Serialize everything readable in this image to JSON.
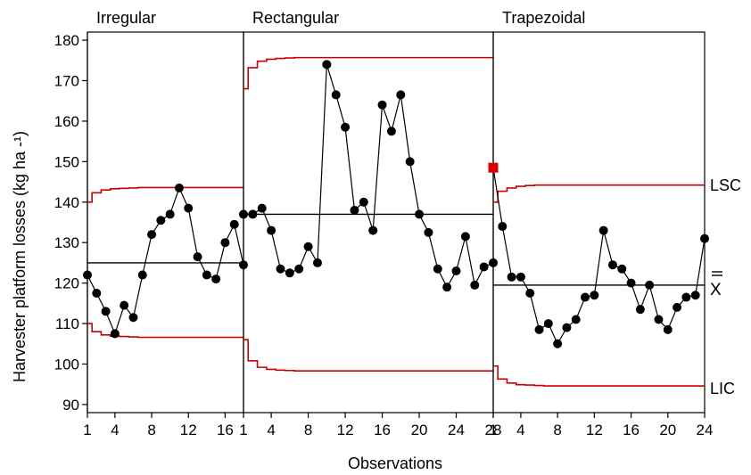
{
  "chart_data": {
    "type": "line",
    "ylabel": "Harvester platform losses (kg ha -¹)",
    "xlabel": "Observations",
    "ylim": [
      88,
      182
    ],
    "y_ticks": [
      90,
      100,
      110,
      120,
      130,
      140,
      150,
      160,
      170,
      180
    ],
    "limit_labels": {
      "upper": "LSC",
      "mean": "X"
    },
    "lower_limit_label": "LIC",
    "panels": [
      {
        "title": "Irregular",
        "n": 18,
        "x_ticks": [
          "1",
          "4",
          "8",
          "12",
          "16"
        ],
        "x_tick_values": [
          1,
          4,
          8,
          12,
          16
        ],
        "mean": 125,
        "values": [
          122,
          117.5,
          113,
          107.5,
          114.5,
          111.5,
          122,
          132,
          135.5,
          137,
          143.5,
          138.5,
          126.5,
          122,
          121,
          130,
          134.5,
          124.5
        ],
        "ucl": [
          140,
          142.3,
          143,
          143.3,
          143.4,
          143.5,
          143.6,
          143.6,
          143.6,
          143.6,
          143.6,
          143.6,
          143.6,
          143.6,
          143.6,
          143.6,
          143.6,
          143.6
        ],
        "lcl": [
          110,
          108,
          107.2,
          106.9,
          106.8,
          106.7,
          106.6,
          106.6,
          106.6,
          106.6,
          106.6,
          106.6,
          106.6,
          106.6,
          106.6,
          106.6,
          106.6,
          106.6
        ]
      },
      {
        "title": "Rectangular",
        "n": 28,
        "x_ticks": [
          "1",
          "4",
          "8",
          "12",
          "16",
          "20",
          "24",
          "28"
        ],
        "x_tick_values": [
          1,
          4,
          8,
          12,
          16,
          20,
          24,
          28
        ],
        "mean": 137,
        "values": [
          137,
          137,
          138.5,
          133,
          123.5,
          122.5,
          123.5,
          129,
          125,
          174,
          166.5,
          158.5,
          138,
          140,
          133,
          164,
          157.5,
          166.5,
          150,
          137,
          132.5,
          123.5,
          119,
          123,
          131.5,
          119.5,
          124,
          125
        ],
        "ucl": [
          168,
          173.2,
          174.8,
          175.3,
          175.5,
          175.6,
          175.7,
          175.7,
          175.7,
          175.7,
          175.7,
          175.7,
          175.7,
          175.7,
          175.7,
          175.7,
          175.7,
          175.7,
          175.7,
          175.7,
          175.7,
          175.7,
          175.7,
          175.7,
          175.7,
          175.7,
          175.7,
          175.7
        ],
        "lcl": [
          106,
          100.8,
          99.2,
          98.7,
          98.5,
          98.4,
          98.3,
          98.3,
          98.3,
          98.3,
          98.3,
          98.3,
          98.3,
          98.3,
          98.3,
          98.3,
          98.3,
          98.3,
          98.3,
          98.3,
          98.3,
          98.3,
          98.3,
          98.3,
          98.3,
          98.3,
          98.3,
          98.3
        ]
      },
      {
        "title": "Trapezoidal",
        "n": 24,
        "x_ticks": [
          "1",
          "4",
          "8",
          "12",
          "16",
          "20",
          "24"
        ],
        "x_tick_values": [
          1,
          4,
          8,
          12,
          16,
          20,
          24
        ],
        "mean": 119.5,
        "values": [
          148.5,
          134,
          121.5,
          121.5,
          117.5,
          108.5,
          110,
          105,
          109,
          111,
          116.5,
          117,
          133,
          124.5,
          123.5,
          120,
          113.5,
          119.5,
          111,
          108.5,
          114,
          116.5,
          117,
          131
        ],
        "ucl": [
          140,
          142.7,
          143.5,
          143.9,
          144.1,
          144.2,
          144.2,
          144.2,
          144.2,
          144.2,
          144.2,
          144.2,
          144.2,
          144.2,
          144.2,
          144.2,
          144.2,
          144.2,
          144.2,
          144.2,
          144.2,
          144.2,
          144.2,
          144.2
        ],
        "lcl": [
          99.5,
          96.3,
          95.3,
          94.9,
          94.8,
          94.7,
          94.6,
          94.6,
          94.6,
          94.6,
          94.6,
          94.6,
          94.6,
          94.6,
          94.6,
          94.6,
          94.6,
          94.6,
          94.6,
          94.6,
          94.6,
          94.6,
          94.6,
          94.6
        ],
        "out_of_control": [
          1
        ]
      }
    ],
    "colors": {
      "limits": "#cc0000",
      "mean": "#000000",
      "points": "#000000",
      "out_of_control": "#dd0000"
    },
    "grid": false
  }
}
